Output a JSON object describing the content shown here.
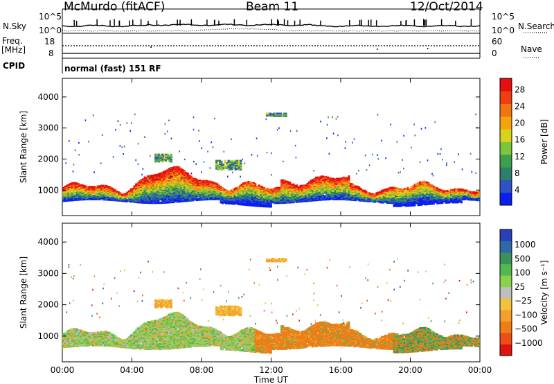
{
  "header": {
    "station": "McMurdo (fitACF)",
    "beam": "Beam 11",
    "date": "12/Oct/2014"
  },
  "summary": {
    "nsky_label": "N.Sky",
    "nsearch_label": "N.Search",
    "freq_label_1": "Freq.",
    "freq_label_2": "[MHz]",
    "nave_label": "Nave",
    "cpid_label": "CPID",
    "cpid_text": "normal (fast) 151 RF",
    "noise_ticks_left": [
      "10^5",
      "10^0"
    ],
    "noise_ticks_right": [
      "10^5",
      "10^0"
    ],
    "freq_ticks": [
      "18",
      "8"
    ],
    "nave_ticks": [
      "60",
      "0"
    ]
  },
  "chart_data": [
    {
      "type": "heatmap",
      "name": "power",
      "xlabel": "Time UT",
      "ylabel": "Slant Range [km]",
      "colorbar_label": "Power [dB]",
      "colorbar_ticks": [
        "4",
        "8",
        "12",
        "16",
        "20",
        "24",
        "28"
      ],
      "colorbar_colors": [
        "#0a1ef0",
        "#2f52c4",
        "#2e7e6a",
        "#3c9f4c",
        "#7cc53c",
        "#d8d21a",
        "#f6a40e",
        "#f47410",
        "#ef3e12",
        "#e60f0f"
      ],
      "x_ticks": [
        "00:00",
        "04:00",
        "08:00",
        "12:00",
        "16:00",
        "20:00",
        "00:00"
      ],
      "xlim_hours": [
        0,
        24
      ],
      "y_ticks": [
        1000,
        2000,
        3000,
        4000
      ],
      "ylim_km": [
        180,
        4600
      ]
    },
    {
      "type": "heatmap",
      "name": "velocity",
      "xlabel": "Time UT",
      "ylabel": "Slant Range [km]",
      "colorbar_label": "Velocity [m s⁻¹]",
      "colorbar_ticks": [
        "1000",
        "500",
        "100",
        "25",
        "−25",
        "−100",
        "−500",
        "−1000"
      ],
      "colorbar_colors": [
        "#2840b8",
        "#2f6aa8",
        "#3d8f5c",
        "#55b84e",
        "#8ad24a",
        "#bebebe",
        "#f2c23a",
        "#f4a12c",
        "#f07c18",
        "#ec4e16",
        "#e01212"
      ],
      "x_ticks": [
        "00:00",
        "04:00",
        "08:00",
        "12:00",
        "16:00",
        "20:00",
        "00:00"
      ],
      "xlim_hours": [
        0,
        24
      ],
      "y_ticks": [
        1000,
        2000,
        3000,
        4000
      ],
      "ylim_km": [
        180,
        4600
      ]
    }
  ]
}
